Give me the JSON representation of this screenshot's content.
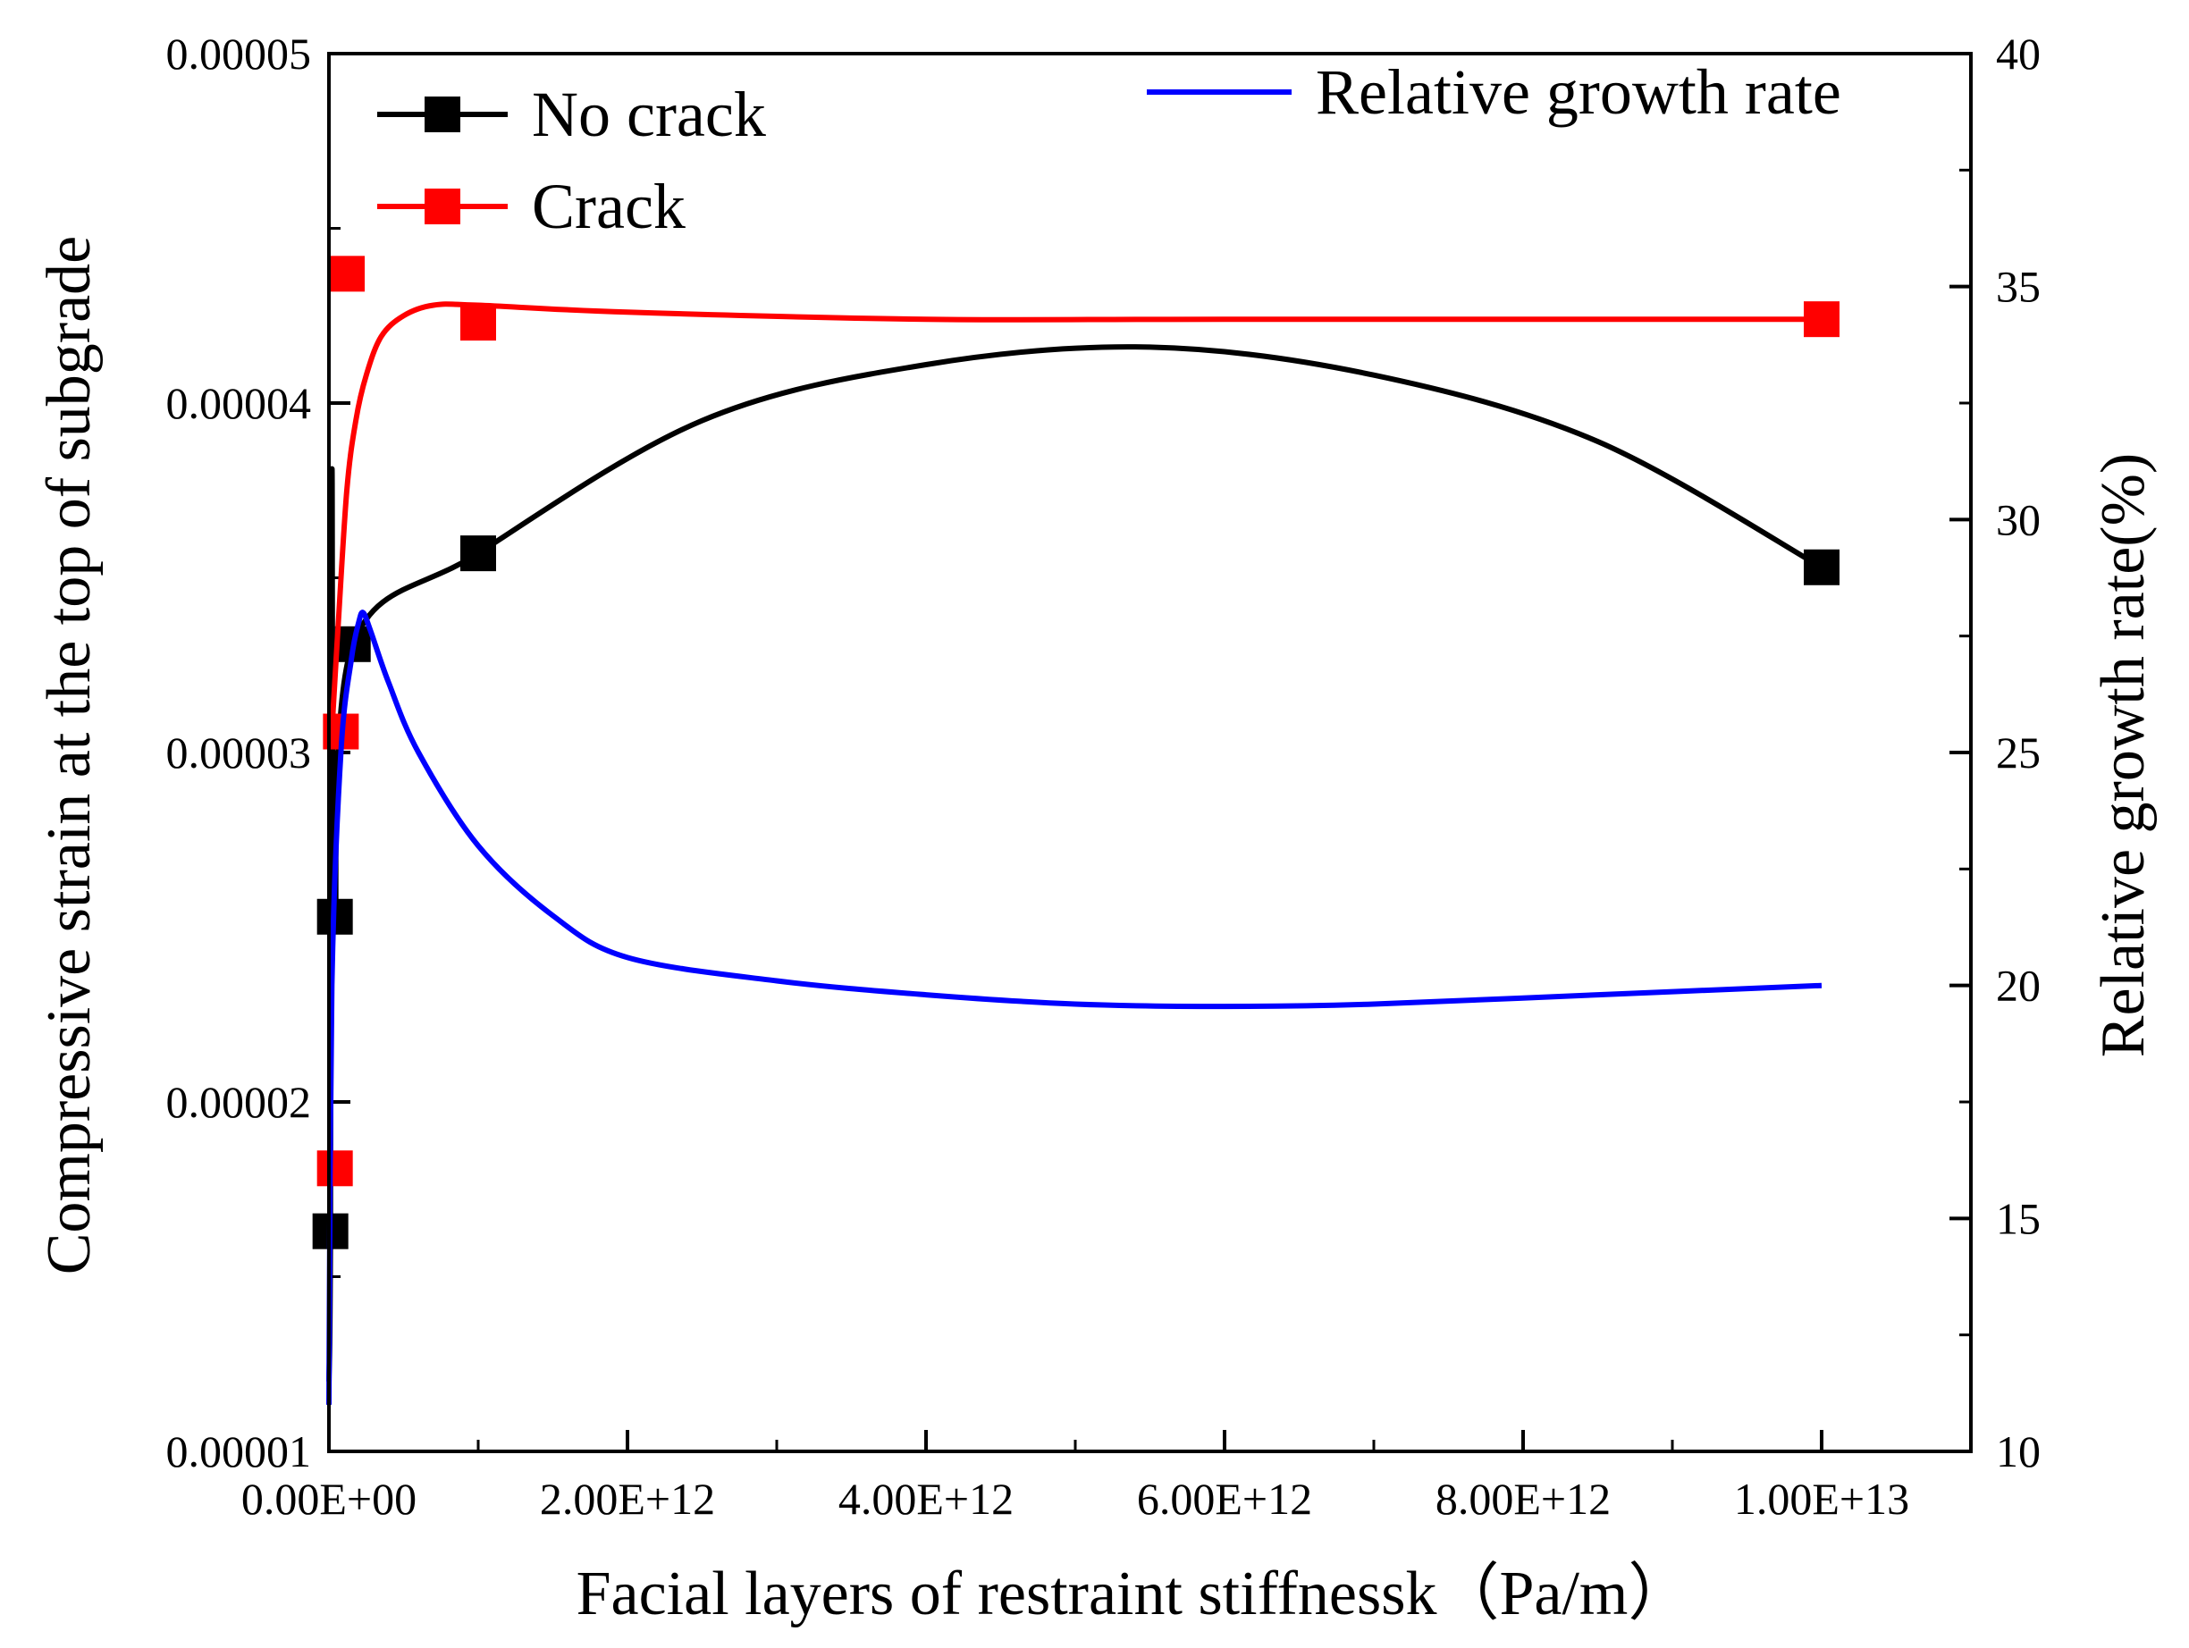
{
  "chart_data": {
    "type": "line",
    "xlabel": "Facial layers of restraint stiffnessk（Pa/m）",
    "ylabel_left": "Compressive strain at the top of subgrade",
    "ylabel_right": "Relative growth rate(%)",
    "x_range": [
      0,
      11000000000000
    ],
    "ylim_left": [
      1e-05,
      5e-05
    ],
    "ylim_right": [
      10,
      40
    ],
    "x_ticks": [
      {
        "value": 0,
        "label": "0.00E+00"
      },
      {
        "value": 2000000000000,
        "label": "2.00E+12"
      },
      {
        "value": 4000000000000,
        "label": "4.00E+12"
      },
      {
        "value": 6000000000000,
        "label": "6.00E+12"
      },
      {
        "value": 8000000000000,
        "label": "8.00E+12"
      },
      {
        "value": 10000000000000,
        "label": "1.00E+13"
      }
    ],
    "y_left_ticks": [
      {
        "value": 1e-05,
        "label": "0.00001"
      },
      {
        "value": 2e-05,
        "label": "0.00002"
      },
      {
        "value": 3e-05,
        "label": "0.00003"
      },
      {
        "value": 4e-05,
        "label": "0.00004"
      },
      {
        "value": 5e-05,
        "label": "0.00005"
      }
    ],
    "y_right_ticks": [
      {
        "value": 10,
        "label": "10"
      },
      {
        "value": 15,
        "label": "15"
      },
      {
        "value": 20,
        "label": "20"
      },
      {
        "value": 25,
        "label": "25"
      },
      {
        "value": 30,
        "label": "30"
      },
      {
        "value": 35,
        "label": "35"
      },
      {
        "value": 40,
        "label": "40"
      }
    ],
    "series": [
      {
        "name": "No crack",
        "axis": "left",
        "color": "#000000",
        "marker": "square",
        "points": [
          [
            10000000000,
            1.63e-05
          ],
          [
            40000000000,
            2.53e-05
          ],
          [
            160000000000,
            3.31e-05
          ],
          [
            1000000000000,
            3.57e-05
          ],
          [
            10000000000000,
            3.53e-05
          ]
        ],
        "curve": [
          [
            0,
            1.2e-05
          ],
          [
            10000000000,
            1.63e-05
          ],
          [
            20000000000,
            3.8e-05
          ],
          [
            40000000000,
            2.53e-05
          ],
          [
            160000000000,
            3.31e-05
          ],
          [
            1000000000000,
            3.57e-05
          ],
          [
            2500000000000,
            3.95e-05
          ],
          [
            4000000000000,
            4.11e-05
          ],
          [
            5500000000000,
            4.16e-05
          ],
          [
            7000000000000,
            4.08e-05
          ],
          [
            8500000000000,
            3.89e-05
          ],
          [
            10000000000000,
            3.53e-05
          ]
        ]
      },
      {
        "name": "Crack",
        "axis": "left",
        "color": "#ff0000",
        "marker": "square",
        "points": [
          [
            40000000000,
            1.81e-05
          ],
          [
            80000000000,
            3.06e-05
          ],
          [
            120000000000,
            4.37e-05
          ],
          [
            1000000000000,
            4.23e-05
          ],
          [
            10000000000000,
            4.24e-05
          ]
        ],
        "curve": [
          [
            20000000000,
            3.06e-05
          ],
          [
            60000000000,
            3.35e-05
          ],
          [
            120000000000,
            3.75e-05
          ],
          [
            180000000000,
            3.95e-05
          ],
          [
            250000000000,
            4.08e-05
          ],
          [
            350000000000,
            4.19e-05
          ],
          [
            500000000000,
            4.25e-05
          ],
          [
            700000000000,
            4.28e-05
          ],
          [
            1000000000000,
            4.28e-05
          ],
          [
            2000000000000,
            4.26e-05
          ],
          [
            4000000000000,
            4.24e-05
          ],
          [
            6000000000000,
            4.24e-05
          ],
          [
            10000000000000,
            4.24e-05
          ]
        ]
      },
      {
        "name": "Relative growth rate",
        "axis": "right",
        "color": "#0000ff",
        "marker": "none",
        "curve": [
          [
            0,
            11
          ],
          [
            20000000000,
            20
          ],
          [
            80000000000,
            25
          ],
          [
            150000000000,
            27
          ],
          [
            200000000000,
            27.8
          ],
          [
            230000000000,
            28
          ],
          [
            280000000000,
            27.6
          ],
          [
            400000000000,
            26.5
          ],
          [
            600000000000,
            25
          ],
          [
            1000000000000,
            23
          ],
          [
            1500000000000,
            21.5
          ],
          [
            2000000000000,
            20.6
          ],
          [
            3000000000000,
            20.1
          ],
          [
            4000000000000,
            19.8
          ],
          [
            5000000000000,
            19.6
          ],
          [
            6000000000000,
            19.55
          ],
          [
            7000000000000,
            19.6
          ],
          [
            8500000000000,
            19.8
          ],
          [
            10000000000000,
            20
          ]
        ]
      }
    ],
    "legend": [
      {
        "name": "No crack",
        "color": "#000000",
        "marker": "square"
      },
      {
        "name": "Crack",
        "color": "#ff0000",
        "marker": "square"
      },
      {
        "name": "Relative growth rate",
        "color": "#0000ff",
        "marker": "none"
      }
    ]
  }
}
